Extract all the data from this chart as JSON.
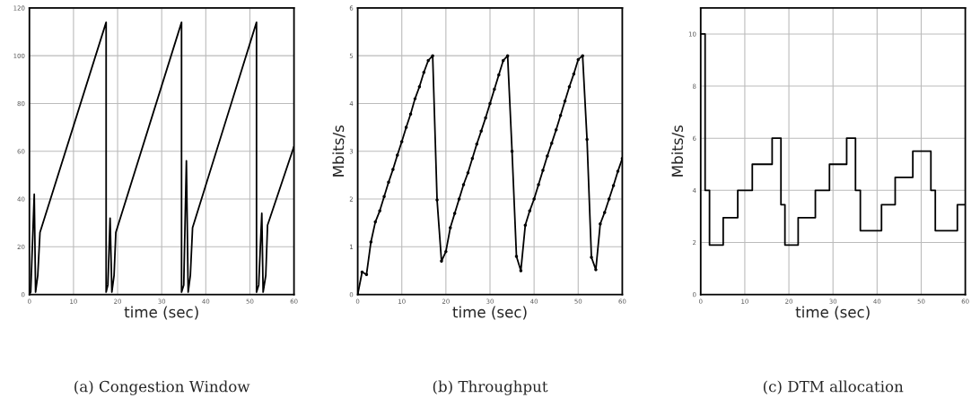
{
  "chart_data": [
    {
      "type": "line",
      "xlabel": "time (sec)",
      "annotations": [
        "(a) Congestion Window"
      ],
      "xlim": [
        0,
        60
      ],
      "xticks": [
        0,
        10,
        20,
        30,
        40,
        50,
        60
      ],
      "ylim": [
        0,
        120
      ],
      "yticks": [
        0,
        20,
        40,
        60,
        80,
        100,
        120
      ],
      "grid": true,
      "series": [
        {
          "color": "#000000",
          "x": [
            0,
            0.3,
            1.1,
            1.4,
            1.9,
            2.4,
            17.4,
            17.4,
            17.8,
            18.3,
            18.7,
            19.2,
            19.6,
            34.5,
            34.5,
            35.0,
            35.6,
            36.0,
            36.5,
            37.0,
            51.5,
            51.5,
            52.0,
            52.7,
            53.0,
            53.6,
            54.0,
            60
          ],
          "values": [
            0,
            1,
            42,
            1,
            8,
            26,
            114,
            1,
            4,
            32,
            1,
            8,
            26,
            114,
            1,
            4,
            56,
            1,
            8,
            28,
            114,
            1,
            4,
            34,
            1,
            8,
            29,
            62
          ]
        }
      ]
    },
    {
      "type": "line",
      "xlabel": "time (sec)",
      "ylabel": "Mbits/s",
      "annotations": [
        "(b) Throughput"
      ],
      "xlim": [
        0,
        60
      ],
      "xticks": [
        0,
        10,
        20,
        30,
        40,
        50,
        60
      ],
      "ylim": [
        0,
        6
      ],
      "yticks": [
        0,
        1,
        2,
        3,
        4,
        5,
        6
      ],
      "grid": true,
      "marker": "circle",
      "series": [
        {
          "color": "#000000",
          "x": [
            0,
            1,
            2,
            3,
            4,
            5,
            6,
            7,
            8,
            9,
            10,
            11,
            12,
            13,
            14,
            15,
            16,
            17,
            18,
            19,
            20,
            21,
            22,
            23,
            24,
            25,
            26,
            27,
            28,
            29,
            30,
            31,
            32,
            33,
            34,
            35,
            36,
            37,
            38,
            39,
            40,
            41,
            42,
            43,
            44,
            45,
            46,
            47,
            48,
            49,
            50,
            51,
            52,
            53,
            54,
            55,
            56,
            57,
            58,
            59,
            60
          ],
          "values": [
            0,
            0.47,
            0.42,
            1.1,
            1.52,
            1.75,
            2.05,
            2.35,
            2.62,
            2.92,
            3.2,
            3.5,
            3.78,
            4.1,
            4.35,
            4.65,
            4.9,
            5.0,
            1.98,
            0.7,
            0.9,
            1.4,
            1.7,
            2.0,
            2.3,
            2.55,
            2.85,
            3.15,
            3.42,
            3.7,
            4.0,
            4.3,
            4.6,
            4.9,
            5.0,
            3.0,
            0.8,
            0.5,
            1.45,
            1.75,
            2.0,
            2.3,
            2.6,
            2.9,
            3.17,
            3.45,
            3.75,
            4.05,
            4.35,
            4.62,
            4.92,
            5.0,
            3.25,
            0.78,
            0.52,
            1.48,
            1.72,
            2.0,
            2.28,
            2.58,
            2.85
          ]
        }
      ]
    },
    {
      "type": "step",
      "xlabel": "time (sec)",
      "ylabel": "Mbits/s",
      "annotations": [
        "(c) DTM allocation"
      ],
      "xlim": [
        0,
        60
      ],
      "xticks": [
        0,
        10,
        20,
        30,
        40,
        50,
        60
      ],
      "ylim": [
        0,
        11
      ],
      "yticks": [
        0,
        2,
        4,
        6,
        8,
        10
      ],
      "grid": true,
      "series": [
        {
          "color": "#000000",
          "x": [
            0,
            1.0,
            2.0,
            5.1,
            8.4,
            11.7,
            16.2,
            18.2,
            19.1,
            22.1,
            26.0,
            29.2,
            33.1,
            35.1,
            36.2,
            41.0,
            44.1,
            48.1,
            52.2,
            53.2,
            58.2,
            60
          ],
          "values": [
            10,
            4,
            1.9,
            2.95,
            4,
            5,
            6,
            3.45,
            1.9,
            2.95,
            4,
            5,
            6,
            4,
            2.45,
            3.45,
            4.5,
            5.5,
            4,
            2.45,
            3.45,
            3.45
          ]
        }
      ]
    }
  ]
}
